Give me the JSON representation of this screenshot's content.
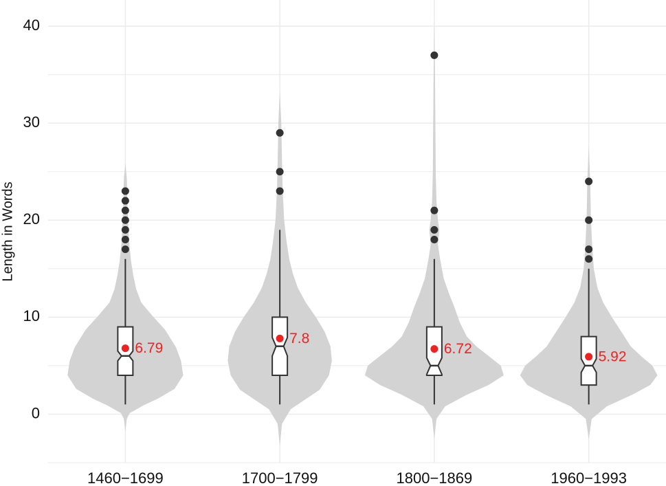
{
  "chart_data": {
    "type": "violin",
    "y_label": "Length in Words",
    "categories": [
      "1460−1699",
      "1700−1799",
      "1800−1869",
      "1960−1993"
    ],
    "ylim": [
      -5,
      42.7
    ],
    "yticks": [
      0,
      10,
      20,
      30,
      40
    ],
    "minor_yticks": [
      -5,
      5,
      15,
      25,
      35
    ],
    "grid": true,
    "violin_color": "#d3d3d3",
    "box_color": "#333333",
    "outlier_color": "#333333",
    "mean_color": "#ee2222",
    "groups": [
      {
        "density_y": [
          -1.8,
          -0.5,
          0.1,
          0.9,
          1.6,
          2.6,
          4,
          5.5,
          6.9,
          8.7,
          10.1,
          11.5,
          12.9,
          14.3,
          15.7,
          17.9,
          21.4,
          24.3,
          25.9
        ],
        "density": [
          0,
          0.02,
          0.06,
          0.25,
          0.45,
          0.68,
          0.8,
          0.77,
          0.7,
          0.55,
          0.38,
          0.22,
          0.15,
          0.11,
          0.08,
          0.05,
          0.03,
          0.02,
          0
        ],
        "whisker_low": 1,
        "q1": 4,
        "notch_lower": 5.5,
        "median": 6,
        "notch_upper": 6.5,
        "q3": 9,
        "whisker_high": 16,
        "outliers": [
          17,
          18,
          19,
          20,
          21,
          22,
          23
        ],
        "mean": 6.79
      },
      {
        "density_y": [
          -3.3,
          -1,
          0.5,
          1.5,
          2.5,
          4,
          5.5,
          7,
          8.5,
          10,
          11.5,
          13,
          14.5,
          16,
          18,
          20,
          23,
          26,
          30,
          33.3
        ],
        "density": [
          0,
          0.03,
          0.15,
          0.35,
          0.55,
          0.68,
          0.72,
          0.7,
          0.62,
          0.5,
          0.36,
          0.25,
          0.18,
          0.13,
          0.09,
          0.06,
          0.04,
          0.03,
          0.02,
          0
        ],
        "whisker_low": 1,
        "q1": 4,
        "notch_lower": 6,
        "median": 7,
        "notch_upper": 7.9,
        "q3": 10,
        "whisker_high": 19,
        "outliers": [
          23,
          25,
          29
        ],
        "mean": 7.8
      },
      {
        "density_y": [
          -2.6,
          -0.5,
          0.8,
          2,
          3,
          4,
          5,
          6,
          7,
          8,
          9.5,
          11,
          12.5,
          14,
          16,
          17.5,
          19,
          20,
          22,
          25,
          30,
          35,
          40.6
        ],
        "density": [
          0,
          0.03,
          0.15,
          0.45,
          0.75,
          0.96,
          0.92,
          0.75,
          0.58,
          0.45,
          0.35,
          0.28,
          0.2,
          0.13,
          0.08,
          0.05,
          0.07,
          0.05,
          0.03,
          0.02,
          0.015,
          0.01,
          0
        ],
        "whisker_low": 1,
        "q1": 4,
        "notch_lower": 4.1,
        "median": 5,
        "notch_upper": 5.8,
        "q3": 9,
        "whisker_high": 16,
        "outliers": [
          18,
          19,
          21,
          37
        ],
        "mean": 6.72
      },
      {
        "density_y": [
          -2.6,
          -0.5,
          0.8,
          2,
          3,
          4,
          5,
          6,
          7,
          8.5,
          10,
          11.5,
          13,
          15,
          17,
          20,
          24,
          27.7
        ],
        "density": [
          0,
          0.04,
          0.25,
          0.6,
          0.85,
          0.95,
          0.88,
          0.72,
          0.58,
          0.45,
          0.32,
          0.2,
          0.12,
          0.07,
          0.05,
          0.03,
          0.02,
          0
        ],
        "whisker_low": 1,
        "q1": 3,
        "notch_lower": 4.3,
        "median": 5,
        "notch_upper": 5.7,
        "q3": 8,
        "whisker_high": 15,
        "outliers": [
          16,
          17,
          20,
          24
        ],
        "mean": 5.92
      }
    ]
  }
}
